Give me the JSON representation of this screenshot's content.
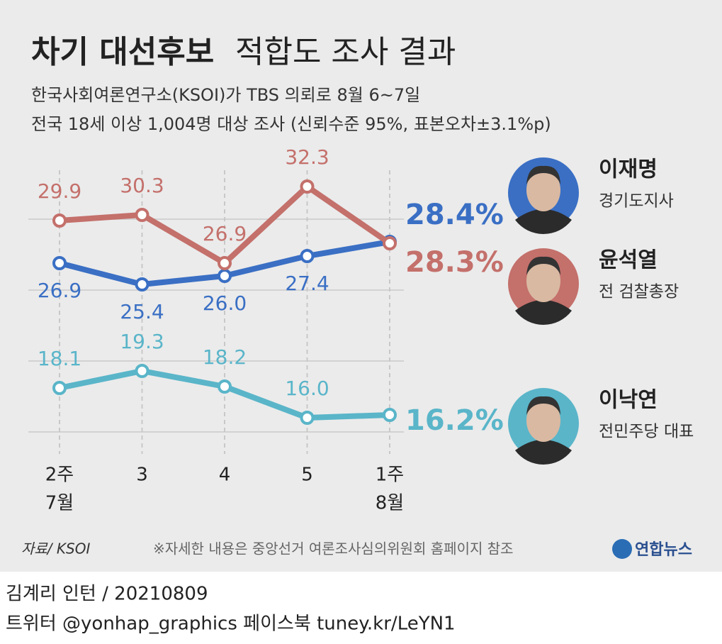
{
  "chart_data": {
    "type": "line",
    "title": [
      "차기 대선후보",
      "적합도 조사 결과"
    ],
    "subtitle": [
      "한국사회여론연구소(KSOI)가 TBS 의뢰로 8월 6~7일",
      "전국 18세 이상 1,004명 대상 조사 (신뢰수준 95%, 표본오차±3.1%p)"
    ],
    "categories": [
      [
        "2주",
        "7월"
      ],
      "3",
      "4",
      "5",
      [
        "1주",
        "8월"
      ]
    ],
    "series": [
      {
        "name": "이재명",
        "role": "경기도지사",
        "color": "#3a6fc4",
        "values": [
          26.9,
          25.4,
          26.0,
          27.4,
          28.4
        ],
        "value_labels": [
          "26.9",
          "25.4",
          "26.0",
          "27.4",
          "28.4%"
        ]
      },
      {
        "name": "윤석열",
        "role": "전 검찰총장",
        "color": "#c4706b",
        "values": [
          29.9,
          30.3,
          26.9,
          32.3,
          28.3
        ],
        "value_labels": [
          "29.9",
          "30.3",
          "26.9",
          "32.3",
          "28.3%"
        ]
      },
      {
        "name": "이낙연",
        "role": "전민주당 대표",
        "color": "#5ab5c9",
        "values": [
          18.1,
          19.3,
          18.2,
          16.0,
          16.2
        ],
        "value_labels": [
          "18.1",
          "19.3",
          "18.2",
          "16.0",
          "16.2%"
        ]
      }
    ],
    "ylim": [
      14,
      35
    ],
    "yticks": [
      15,
      20,
      25,
      30
    ],
    "grid": true,
    "source": "자료/ KSOI",
    "note": "※자세한 내용은 중앙선거 여론조사심의위원회 홈페이지 참조",
    "logo": "연합뉴스"
  },
  "footer": [
    "김계리 인턴 / 20210809",
    "트위터 @yonhap_graphics  페이스북 tuney.kr/LeYN1"
  ]
}
